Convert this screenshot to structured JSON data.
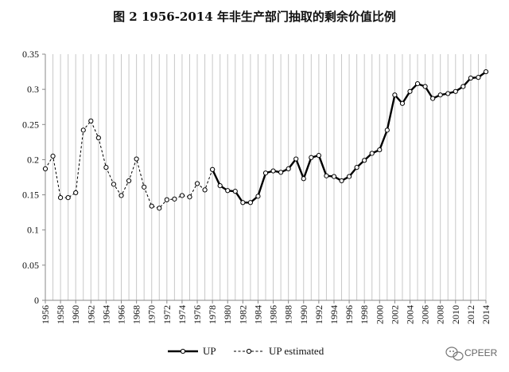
{
  "chart_data": {
    "type": "line",
    "title": "图 2 1956-2014 年非生产部门抽取的剩余价值比例",
    "xlabel": "",
    "ylabel": "",
    "xlim": [
      1956,
      2014
    ],
    "ylim": [
      0,
      0.35
    ],
    "yticks": [
      "0",
      "0.05",
      "0.1",
      "0.15",
      "0.2",
      "0.25",
      "0.3",
      "0.35"
    ],
    "xticks": [
      "1956",
      "1958",
      "1960",
      "1962",
      "1964",
      "1966",
      "1968",
      "1970",
      "1972",
      "1974",
      "1976",
      "1978",
      "1980",
      "1982",
      "1984",
      "1986",
      "1988",
      "1990",
      "1992",
      "1994",
      "1996",
      "1998",
      "2000",
      "2002",
      "2004",
      "2006",
      "2008",
      "2010",
      "2012",
      "2014"
    ],
    "grid": "vertical",
    "legend_position": "bottom-center",
    "series": [
      {
        "name": "UP",
        "style": "solid",
        "color": "#000000",
        "x": [
          1978,
          1979,
          1980,
          1981,
          1982,
          1983,
          1984,
          1985,
          1986,
          1987,
          1988,
          1989,
          1990,
          1991,
          1992,
          1993,
          1994,
          1995,
          1996,
          1997,
          1998,
          1999,
          2000,
          2001,
          2002,
          2003,
          2004,
          2005,
          2006,
          2007,
          2008,
          2009,
          2010,
          2011,
          2012,
          2013,
          2014
        ],
        "values": [
          0.186,
          0.163,
          0.156,
          0.155,
          0.139,
          0.139,
          0.148,
          0.181,
          0.184,
          0.182,
          0.187,
          0.201,
          0.173,
          0.203,
          0.206,
          0.177,
          0.176,
          0.17,
          0.176,
          0.189,
          0.199,
          0.209,
          0.214,
          0.242,
          0.292,
          0.28,
          0.297,
          0.308,
          0.304,
          0.287,
          0.292,
          0.294,
          0.297,
          0.304,
          0.316,
          0.317,
          0.325
        ]
      },
      {
        "name": "UP estimated",
        "style": "dashed",
        "color": "#000000",
        "x": [
          1956,
          1957,
          1958,
          1959,
          1960,
          1961,
          1962,
          1963,
          1964,
          1965,
          1966,
          1967,
          1968,
          1969,
          1970,
          1971,
          1972,
          1973,
          1974,
          1975,
          1976,
          1977,
          1978
        ],
        "values": [
          0.187,
          0.205,
          0.146,
          0.146,
          0.153,
          0.242,
          0.255,
          0.231,
          0.189,
          0.165,
          0.149,
          0.17,
          0.201,
          0.161,
          0.134,
          0.131,
          0.143,
          0.144,
          0.149,
          0.147,
          0.166,
          0.157,
          0.186
        ]
      }
    ]
  },
  "watermark": {
    "text": "CPEER",
    "icon": "wechat-icon"
  }
}
